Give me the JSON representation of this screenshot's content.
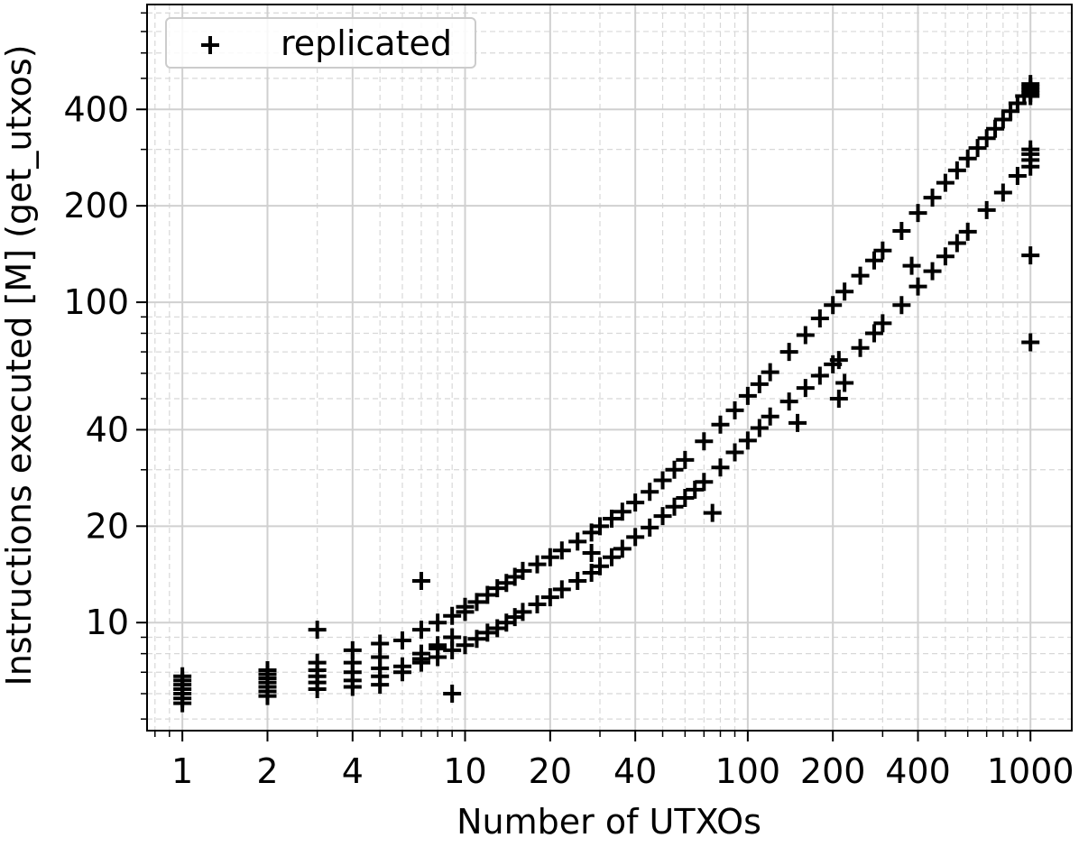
{
  "chart_data": {
    "type": "scatter",
    "xlabel": "Number of UTXOs",
    "ylabel": "Instructions executed [M] (get_utxos)",
    "xscale": "log",
    "yscale": "log",
    "xlim": [
      0.75,
      1400
    ],
    "ylim": [
      4.6,
      850
    ],
    "xticks": [
      1,
      2,
      4,
      10,
      20,
      40,
      100,
      200,
      400,
      1000
    ],
    "xtick_labels": [
      "1",
      "2",
      "4",
      "10",
      "20",
      "40",
      "100",
      "200",
      "400",
      "1000"
    ],
    "yticks": [
      10,
      20,
      40,
      100,
      200,
      400
    ],
    "ytick_labels": [
      "10",
      "20",
      "40",
      "100",
      "200",
      "400"
    ],
    "grid": true,
    "legend_position": "top-left",
    "marker": "+",
    "color": "#000000",
    "series": [
      {
        "name": "replicated",
        "x": [
          1,
          1,
          1,
          1,
          1,
          1,
          1,
          2,
          2,
          2,
          2,
          2,
          2,
          2,
          3,
          3,
          3,
          3,
          3,
          3,
          4,
          4,
          4,
          4,
          4,
          5,
          5,
          5,
          5,
          5,
          6,
          6,
          7,
          7,
          7,
          8,
          8,
          9,
          9,
          10,
          10,
          11,
          12,
          13,
          14,
          15,
          16,
          18,
          20,
          22,
          25,
          28,
          30,
          33,
          36,
          40,
          45,
          50,
          55,
          60,
          70,
          80,
          90,
          100,
          110,
          120,
          140,
          160,
          180,
          200,
          220,
          250,
          280,
          300,
          350,
          400,
          450,
          500,
          550,
          600,
          650,
          700,
          750,
          800,
          850,
          900,
          950,
          1000,
          1000,
          1000,
          1000,
          1000,
          6,
          7,
          8,
          9,
          10,
          11,
          12,
          13,
          14,
          15,
          16,
          18,
          20,
          22,
          25,
          28,
          30,
          33,
          36,
          40,
          45,
          50,
          55,
          60,
          65,
          70,
          80,
          90,
          100,
          110,
          120,
          140,
          160,
          180,
          200,
          210,
          220,
          250,
          280,
          300,
          350,
          400,
          450,
          500,
          550,
          600,
          700,
          800,
          900,
          1000,
          1000,
          1000,
          1000,
          1000,
          1000,
          7,
          8,
          9,
          28,
          75,
          210,
          380,
          150
        ],
        "y": [
          5.6,
          5.8,
          6.0,
          6.2,
          6.4,
          6.6,
          6.8,
          5.9,
          6.1,
          6.3,
          6.5,
          6.7,
          6.9,
          7.1,
          6.2,
          6.5,
          6.8,
          7.1,
          7.5,
          9.5,
          6.3,
          6.6,
          7.0,
          7.5,
          8.2,
          6.4,
          6.8,
          7.2,
          7.8,
          8.6,
          7.3,
          8.8,
          8.0,
          9.5,
          13.5,
          8.5,
          10.0,
          9.0,
          10.5,
          10.8,
          11.2,
          11.6,
          12.2,
          12.8,
          13.3,
          13.9,
          14.5,
          15.2,
          16.0,
          16.8,
          17.9,
          19.1,
          20.0,
          21.1,
          22.2,
          23.7,
          25.6,
          27.8,
          30.0,
          32.2,
          36.8,
          41.5,
          46.0,
          51.0,
          55.5,
          60.5,
          70.0,
          79.0,
          89.0,
          98.0,
          108.0,
          121.0,
          135.0,
          145.0,
          167.0,
          190.0,
          212.0,
          236.0,
          258.0,
          281.0,
          303.0,
          325.0,
          348.0,
          372.0,
          395.0,
          418.0,
          440.0,
          460.0,
          470.0,
          480.0,
          450.0,
          440.0,
          7.0,
          7.5,
          7.8,
          8.2,
          8.5,
          8.9,
          9.3,
          9.6,
          10.0,
          10.4,
          10.8,
          11.4,
          12.0,
          12.7,
          13.5,
          14.3,
          15.0,
          16.0,
          17.0,
          18.5,
          19.8,
          21.5,
          23.0,
          24.5,
          26.0,
          27.5,
          30.5,
          34.0,
          37.0,
          40.5,
          44.0,
          49.0,
          54.0,
          59.0,
          64.0,
          66.0,
          56.0,
          72.0,
          80.0,
          86.0,
          98.0,
          112.0,
          125.0,
          139.0,
          153.0,
          166.0,
          194.0,
          220.0,
          248.0,
          265.0,
          278.0,
          290.0,
          300.0,
          140.0,
          75.0,
          7.7,
          8.3,
          6.0,
          16.5,
          22.0,
          50.0,
          130.0,
          42.0
        ]
      }
    ]
  }
}
